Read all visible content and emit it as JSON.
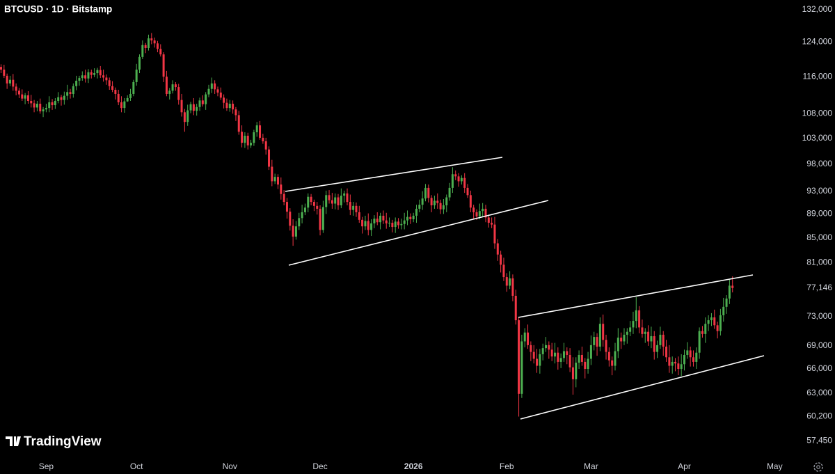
{
  "chart_data": {
    "type": "candlestick",
    "title": "BTCUSD · 1D · Bitstamp",
    "watermark": "TradingView",
    "log_scale": true,
    "grid": false,
    "up_color": "#4caf50",
    "down_color": "#f23645",
    "ylim": [
      55800,
      134500
    ],
    "yticks": [
      {
        "value": 132000,
        "label": "132,000"
      },
      {
        "value": 124000,
        "label": "124,000"
      },
      {
        "value": 116000,
        "label": "116,000"
      },
      {
        "value": 108000,
        "label": "108,000"
      },
      {
        "value": 103000,
        "label": "103,000"
      },
      {
        "value": 98000,
        "label": "98,000"
      },
      {
        "value": 93000,
        "label": "93,000"
      },
      {
        "value": 89000,
        "label": "89,000"
      },
      {
        "value": 85000,
        "label": "85,000"
      },
      {
        "value": 81000,
        "label": "81,000"
      },
      {
        "value": 77146,
        "label": "77,146"
      },
      {
        "value": 73000,
        "label": "73,000"
      },
      {
        "value": 69000,
        "label": "69,000"
      },
      {
        "value": 66000,
        "label": "66,000"
      },
      {
        "value": 63000,
        "label": "63,000"
      },
      {
        "value": 60200,
        "label": "60,200"
      },
      {
        "value": 57450,
        "label": "57,450"
      }
    ],
    "categories": [
      null,
      null,
      null,
      null,
      null,
      null,
      null,
      null,
      null,
      null,
      null,
      null,
      null,
      null,
      null,
      "Sep",
      null,
      null,
      null,
      null,
      null,
      null,
      null,
      null,
      null,
      null,
      null,
      null,
      null,
      null,
      null,
      null,
      null,
      null,
      null,
      null,
      null,
      null,
      null,
      null,
      null,
      null,
      null,
      null,
      null,
      "Oct",
      null,
      null,
      null,
      null,
      null,
      null,
      null,
      null,
      null,
      null,
      null,
      null,
      null,
      null,
      null,
      null,
      null,
      null,
      null,
      null,
      null,
      null,
      null,
      null,
      null,
      null,
      null,
      null,
      null,
      null,
      "Nov",
      null,
      null,
      null,
      null,
      null,
      null,
      null,
      null,
      null,
      null,
      null,
      null,
      null,
      null,
      null,
      null,
      null,
      null,
      null,
      null,
      null,
      null,
      null,
      null,
      null,
      null,
      null,
      null,
      null,
      "Dec",
      null,
      null,
      null,
      null,
      null,
      null,
      null,
      null,
      null,
      null,
      null,
      null,
      null,
      null,
      null,
      null,
      null,
      null,
      null,
      null,
      null,
      null,
      null,
      null,
      null,
      null,
      null,
      null,
      null,
      null,
      "2026",
      null,
      null,
      null,
      null,
      null,
      null,
      null,
      null,
      null,
      null,
      null,
      null,
      null,
      null,
      null,
      null,
      null,
      null,
      null,
      null,
      null,
      null,
      null,
      null,
      null,
      null,
      null,
      null,
      null,
      null,
      "Feb",
      null,
      null,
      null,
      null,
      null,
      null,
      null,
      null,
      null,
      null,
      null,
      null,
      null,
      null,
      null,
      null,
      null,
      null,
      null,
      null,
      null,
      null,
      null,
      null,
      null,
      null,
      null,
      "Mar",
      null,
      null,
      null,
      null,
      null,
      null,
      null,
      null,
      null,
      null,
      null,
      null,
      null,
      null,
      null,
      null,
      null,
      null,
      null,
      null,
      null,
      null,
      null,
      null,
      null,
      null,
      null,
      null,
      null,
      null,
      "Apr",
      null,
      null,
      null,
      null,
      null,
      null,
      null,
      null,
      null,
      null,
      null,
      null,
      null,
      null,
      null,
      null,
      null,
      null,
      null,
      null,
      null,
      null,
      null,
      null,
      null,
      null,
      null,
      null,
      null,
      "May"
    ],
    "open": [
      118200,
      117600,
      116200,
      114500,
      115300,
      113800,
      112900,
      112100,
      111200,
      111900,
      110700,
      110200,
      109300,
      110100,
      108500,
      108900,
      109200,
      110400,
      109800,
      110700,
      111500,
      110900,
      111800,
      112600,
      112200,
      113900,
      115100,
      115700,
      116300,
      115600,
      117000,
      116400,
      116800,
      117500,
      116300,
      115800,
      115200,
      113900,
      113100,
      112200,
      110400,
      109200,
      110600,
      111300,
      112200,
      114800,
      117600,
      120500,
      123300,
      122600,
      124900,
      124400,
      123700,
      122400,
      121100,
      116000,
      112200,
      112900,
      114300,
      113700,
      110900,
      108300,
      106300,
      108700,
      110000,
      108600,
      109400,
      110800,
      110000,
      112100,
      113300,
      114500,
      113200,
      112500,
      111400,
      110300,
      109200,
      110100,
      108900,
      107700,
      104300,
      102100,
      103500,
      101600,
      102100,
      104200,
      105600,
      103100,
      102400,
      100800,
      97500,
      94800,
      95600,
      94200,
      92500,
      91100,
      89400,
      87000,
      85200,
      86900,
      88300,
      89300,
      90100,
      92000,
      91100,
      90400,
      89900,
      86300,
      90200,
      92300,
      91400,
      90800,
      91900,
      90500,
      92200,
      92600,
      91100,
      89700,
      90400,
      89300,
      88000,
      86900,
      87800,
      86300,
      87400,
      88200,
      87600,
      88700,
      87900,
      87400,
      87500,
      86800,
      87700,
      87100,
      87300,
      87900,
      88500,
      88100,
      88700,
      89900,
      90600,
      91700,
      93600,
      91800,
      90500,
      91300,
      90900,
      89800,
      90500,
      91900,
      93600,
      96100,
      95700,
      94800,
      95400,
      93600,
      92300,
      90100,
      89300,
      88600,
      89500,
      89900,
      88400,
      87500,
      87200,
      84100,
      82300,
      80700,
      78800,
      77500,
      78600,
      76000,
      72500,
      62900,
      69600,
      70800,
      69100,
      68200,
      67300,
      66400,
      67900,
      68700,
      69100,
      68500,
      67600,
      68100,
      66900,
      67400,
      68300,
      67800,
      66200,
      64700,
      66800,
      67800,
      66900,
      66000,
      67300,
      69100,
      70200,
      68900,
      72000,
      69800,
      68200,
      67100,
      66400,
      68300,
      70100,
      69600,
      70500,
      70900,
      71500,
      72400,
      73900,
      71500,
      70600,
      70900,
      69600,
      70300,
      68200,
      69100,
      70500,
      68900,
      67500,
      66400,
      66900,
      66700,
      66000,
      66600,
      67800,
      68400,
      67500,
      66900,
      68100,
      71000,
      70600,
      72000,
      72500,
      72900,
      71800,
      71000,
      73200,
      74400,
      75600,
      77500,
      null,
      null,
      null,
      null,
      null,
      null,
      null,
      null,
      null,
      null,
      null,
      null,
      null,
      null
    ],
    "high": [
      118800,
      118700,
      116700,
      116200,
      116600,
      114500,
      113500,
      113200,
      112400,
      112800,
      112000,
      110900,
      110700,
      111200,
      109400,
      110100,
      111700,
      111100,
      111300,
      112600,
      112000,
      112700,
      114200,
      113300,
      114500,
      116200,
      116200,
      117200,
      117600,
      117700,
      117600,
      117900,
      118000,
      118400,
      117600,
      116500,
      115800,
      115000,
      113600,
      113100,
      111700,
      111300,
      111900,
      113300,
      115300,
      118900,
      121100,
      124400,
      123800,
      125800,
      126200,
      125100,
      124300,
      123500,
      121600,
      117300,
      113500,
      115200,
      114800,
      114400,
      112200,
      109000,
      109900,
      110500,
      111300,
      110100,
      111400,
      111900,
      112600,
      114200,
      115800,
      115200,
      113800,
      113600,
      112100,
      111200,
      110900,
      110800,
      109400,
      108600,
      105600,
      104200,
      104100,
      102700,
      104700,
      106300,
      106500,
      103900,
      103100,
      101400,
      98800,
      96200,
      96100,
      95500,
      93200,
      91800,
      90000,
      88100,
      87800,
      89200,
      90600,
      90800,
      92600,
      92500,
      91500,
      91100,
      90500,
      91300,
      93100,
      93200,
      92700,
      92600,
      92500,
      93500,
      93100,
      93500,
      92400,
      91100,
      91000,
      90400,
      88500,
      88700,
      89100,
      88100,
      88800,
      89300,
      89200,
      89600,
      89200,
      88400,
      88000,
      88400,
      88300,
      88200,
      89200,
      89600,
      89100,
      89200,
      90600,
      91500,
      93000,
      94300,
      94200,
      92300,
      92200,
      92600,
      91500,
      91600,
      92400,
      94500,
      97400,
      96800,
      96300,
      95900,
      96300,
      94300,
      93100,
      90600,
      89800,
      90800,
      90900,
      90600,
      88900,
      88400,
      88500,
      84800,
      82900,
      81800,
      79400,
      79700,
      79200,
      76900,
      73000,
      70500,
      71400,
      71900,
      69600,
      69100,
      68600,
      68600,
      69300,
      70200,
      69600,
      69400,
      69400,
      68800,
      68000,
      69400,
      68800,
      68700,
      67500,
      67500,
      68400,
      68900,
      67400,
      68200,
      70400,
      70900,
      70700,
      72900,
      73300,
      70500,
      68800,
      67600,
      69400,
      71400,
      70800,
      71400,
      71400,
      72400,
      73700,
      75800,
      74500,
      72600,
      71400,
      71800,
      71600,
      71000,
      69700,
      71600,
      71000,
      69800,
      69100,
      67600,
      67400,
      67600,
      67900,
      68500,
      69500,
      68900,
      68400,
      68800,
      71500,
      71700,
      72900,
      73200,
      73500,
      74000,
      72300,
      74100,
      75700,
      76100,
      78400,
      78900,
      null,
      null,
      null,
      null,
      null,
      null,
      null,
      null,
      null,
      null,
      null,
      null,
      null,
      null
    ],
    "low": [
      116800,
      115700,
      113300,
      113900,
      112900,
      111900,
      111300,
      110700,
      110000,
      110100,
      109300,
      108300,
      108500,
      108000,
      107300,
      108300,
      108300,
      108800,
      109000,
      110200,
      109700,
      109900,
      110900,
      111200,
      111400,
      113000,
      114000,
      115100,
      114700,
      114600,
      115600,
      115900,
      115600,
      115700,
      114900,
      114200,
      113100,
      112600,
      111000,
      109800,
      108300,
      108200,
      110500,
      110700,
      111700,
      114000,
      116800,
      120000,
      121400,
      122000,
      123500,
      122700,
      121600,
      120600,
      114800,
      111700,
      111000,
      112300,
      112900,
      109900,
      107400,
      104300,
      105500,
      108100,
      107700,
      107600,
      108600,
      109500,
      108800,
      111500,
      112400,
      112200,
      111700,
      110900,
      109100,
      108600,
      108400,
      108000,
      106500,
      103700,
      101200,
      101100,
      100800,
      101100,
      101500,
      103300,
      102700,
      101900,
      99800,
      96900,
      93900,
      94300,
      93400,
      91500,
      90500,
      88200,
      86200,
      83700,
      84700,
      86300,
      87400,
      88800,
      89300,
      90500,
      89500,
      88900,
      85400,
      85800,
      89000,
      90800,
      89900,
      89800,
      89700,
      90000,
      91000,
      90500,
      88800,
      88700,
      88500,
      87500,
      85700,
      86300,
      85400,
      85300,
      86600,
      87100,
      86400,
      87300,
      86500,
      86800,
      85900,
      85800,
      86500,
      86400,
      86400,
      87100,
      87300,
      87600,
      87500,
      89300,
      89700,
      91200,
      91000,
      89300,
      89900,
      89900,
      89000,
      89000,
      89300,
      91300,
      92700,
      95000,
      93800,
      94200,
      92700,
      91800,
      89300,
      88200,
      88000,
      88100,
      88600,
      87600,
      86700,
      86600,
      83200,
      81300,
      79500,
      78200,
      76600,
      77000,
      75200,
      71900,
      60200,
      62400,
      68800,
      68600,
      67000,
      66700,
      65500,
      65400,
      67100,
      68200,
      67300,
      67000,
      66700,
      65900,
      66100,
      66900,
      66600,
      65600,
      62800,
      63700,
      66000,
      66400,
      64800,
      65400,
      66500,
      68400,
      67700,
      68300,
      68900,
      67200,
      66300,
      65200,
      65800,
      67400,
      68600,
      69100,
      69300,
      70300,
      70600,
      71400,
      70700,
      70100,
      69400,
      69000,
      68700,
      67200,
      67400,
      68600,
      67700,
      66900,
      65500,
      65400,
      65700,
      65200,
      65100,
      65800,
      67300,
      66300,
      66300,
      66000,
      67300,
      70100,
      69400,
      71000,
      71700,
      71300,
      70000,
      70400,
      72300,
      73400,
      74800,
      76500,
      null,
      null,
      null,
      null,
      null,
      null,
      null,
      null,
      null,
      null,
      null,
      null,
      null,
      null
    ],
    "close": [
      117600,
      116200,
      114500,
      115300,
      113800,
      112900,
      112100,
      111200,
      111900,
      110700,
      110200,
      109300,
      110100,
      108500,
      108900,
      109200,
      110400,
      109800,
      110700,
      111500,
      110900,
      111800,
      112600,
      112200,
      113900,
      115100,
      115700,
      116300,
      115600,
      117000,
      116400,
      116800,
      117500,
      116300,
      115800,
      115200,
      113900,
      113100,
      112200,
      110400,
      109200,
      110600,
      111300,
      112200,
      114800,
      117600,
      120500,
      123300,
      122600,
      124900,
      124400,
      123700,
      122400,
      121100,
      116000,
      112200,
      112900,
      114300,
      113700,
      110900,
      108300,
      106300,
      108700,
      110000,
      108600,
      109400,
      110800,
      110000,
      112100,
      113300,
      114500,
      113200,
      112500,
      111400,
      110300,
      109200,
      110100,
      108900,
      107700,
      104300,
      102100,
      103500,
      101600,
      102100,
      104200,
      105600,
      103100,
      102400,
      100800,
      97500,
      94800,
      95600,
      94200,
      92500,
      91100,
      89400,
      87000,
      85200,
      86900,
      88300,
      89300,
      90100,
      92000,
      91100,
      90400,
      89900,
      86300,
      90200,
      92300,
      91400,
      90800,
      91900,
      90500,
      92200,
      92600,
      91100,
      89700,
      90400,
      89300,
      88000,
      86900,
      87800,
      86300,
      87400,
      88200,
      87600,
      88700,
      87900,
      87400,
      87500,
      86800,
      87700,
      87100,
      87300,
      87900,
      88500,
      88100,
      88700,
      89900,
      90600,
      91700,
      93600,
      91800,
      90500,
      91300,
      90900,
      89800,
      90500,
      91900,
      93600,
      96100,
      95700,
      94800,
      95400,
      93600,
      92300,
      90100,
      89300,
      88600,
      89500,
      89900,
      88400,
      87500,
      87200,
      84100,
      82300,
      80700,
      78800,
      77500,
      78600,
      76000,
      72500,
      62900,
      69600,
      70800,
      69100,
      68200,
      67300,
      66400,
      67900,
      68700,
      69100,
      68500,
      67600,
      68100,
      66900,
      67400,
      68300,
      67800,
      66200,
      64700,
      66800,
      67800,
      66900,
      66000,
      67300,
      69100,
      70200,
      68900,
      72000,
      69800,
      68200,
      67100,
      66400,
      68300,
      70100,
      69600,
      70500,
      70900,
      71500,
      72400,
      73900,
      71500,
      70600,
      70900,
      69600,
      70300,
      68200,
      69100,
      70500,
      68900,
      67500,
      66400,
      66900,
      66700,
      66000,
      66600,
      67800,
      68400,
      67500,
      66900,
      68100,
      71000,
      70600,
      72000,
      72500,
      72900,
      71800,
      71000,
      73200,
      74400,
      75600,
      77500,
      77146,
      null,
      null,
      null,
      null,
      null,
      null,
      null,
      null,
      null,
      null,
      null,
      null,
      null,
      null
    ]
  }
}
